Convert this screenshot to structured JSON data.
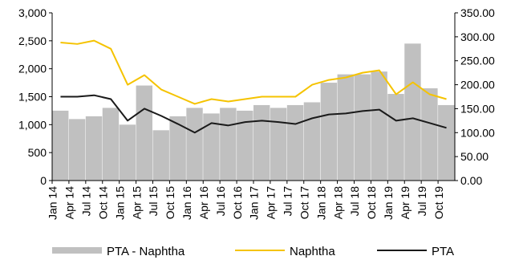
{
  "chart_data": {
    "type": "bar+line",
    "x_labels": [
      "Jan 14",
      "Apr 14",
      "Jul 14",
      "Oct 14",
      "Jan 15",
      "Apr 15",
      "Jul 15",
      "Oct 15",
      "Jan 16",
      "Apr 16",
      "Jul 16",
      "Oct 16",
      "Jan 17",
      "Apr 17",
      "Jul 17",
      "Oct 17",
      "Jan 18",
      "Apr 18",
      "Jul 18",
      "Oct 18",
      "Jan 19",
      "Apr 19",
      "Jul 19",
      "Oct 19"
    ],
    "y_left": {
      "min": 0,
      "max": 3000,
      "ticks": [
        "0",
        "500",
        "1,000",
        "1,500",
        "2,000",
        "2,500",
        "3,000"
      ]
    },
    "y_right": {
      "min": 0,
      "max": 350,
      "ticks": [
        "0.00",
        "50.00",
        "100.00",
        "150.00",
        "200.00",
        "250.00",
        "300.00",
        "350.00"
      ]
    },
    "grid": false,
    "legend_position": "bottom",
    "series": [
      {
        "name": "PTA - Naphtha",
        "kind": "bar",
        "axis": "left",
        "color": "#c0c0c0",
        "values": [
          1250,
          1100,
          1150,
          1300,
          1000,
          1700,
          900,
          1150,
          1300,
          1200,
          1300,
          1250,
          1350,
          1300,
          1350,
          1400,
          1750,
          1900,
          1900,
          1950,
          1550,
          2450,
          1650,
          1350
        ]
      },
      {
        "name": "Naphtha",
        "kind": "line",
        "axis": "right",
        "color": "#f5c300",
        "values": [
          288,
          285,
          292,
          275,
          200,
          220,
          190,
          175,
          160,
          170,
          165,
          170,
          175,
          175,
          175,
          200,
          210,
          215,
          225,
          230,
          180,
          205,
          180,
          170
        ]
      },
      {
        "name": "PTA",
        "kind": "line",
        "axis": "right",
        "color": "#1a1a1a",
        "values": [
          175,
          175,
          178,
          170,
          125,
          150,
          135,
          118,
          100,
          120,
          115,
          122,
          125,
          122,
          118,
          130,
          138,
          140,
          145,
          148,
          125,
          130,
          120,
          110
        ]
      }
    ]
  }
}
